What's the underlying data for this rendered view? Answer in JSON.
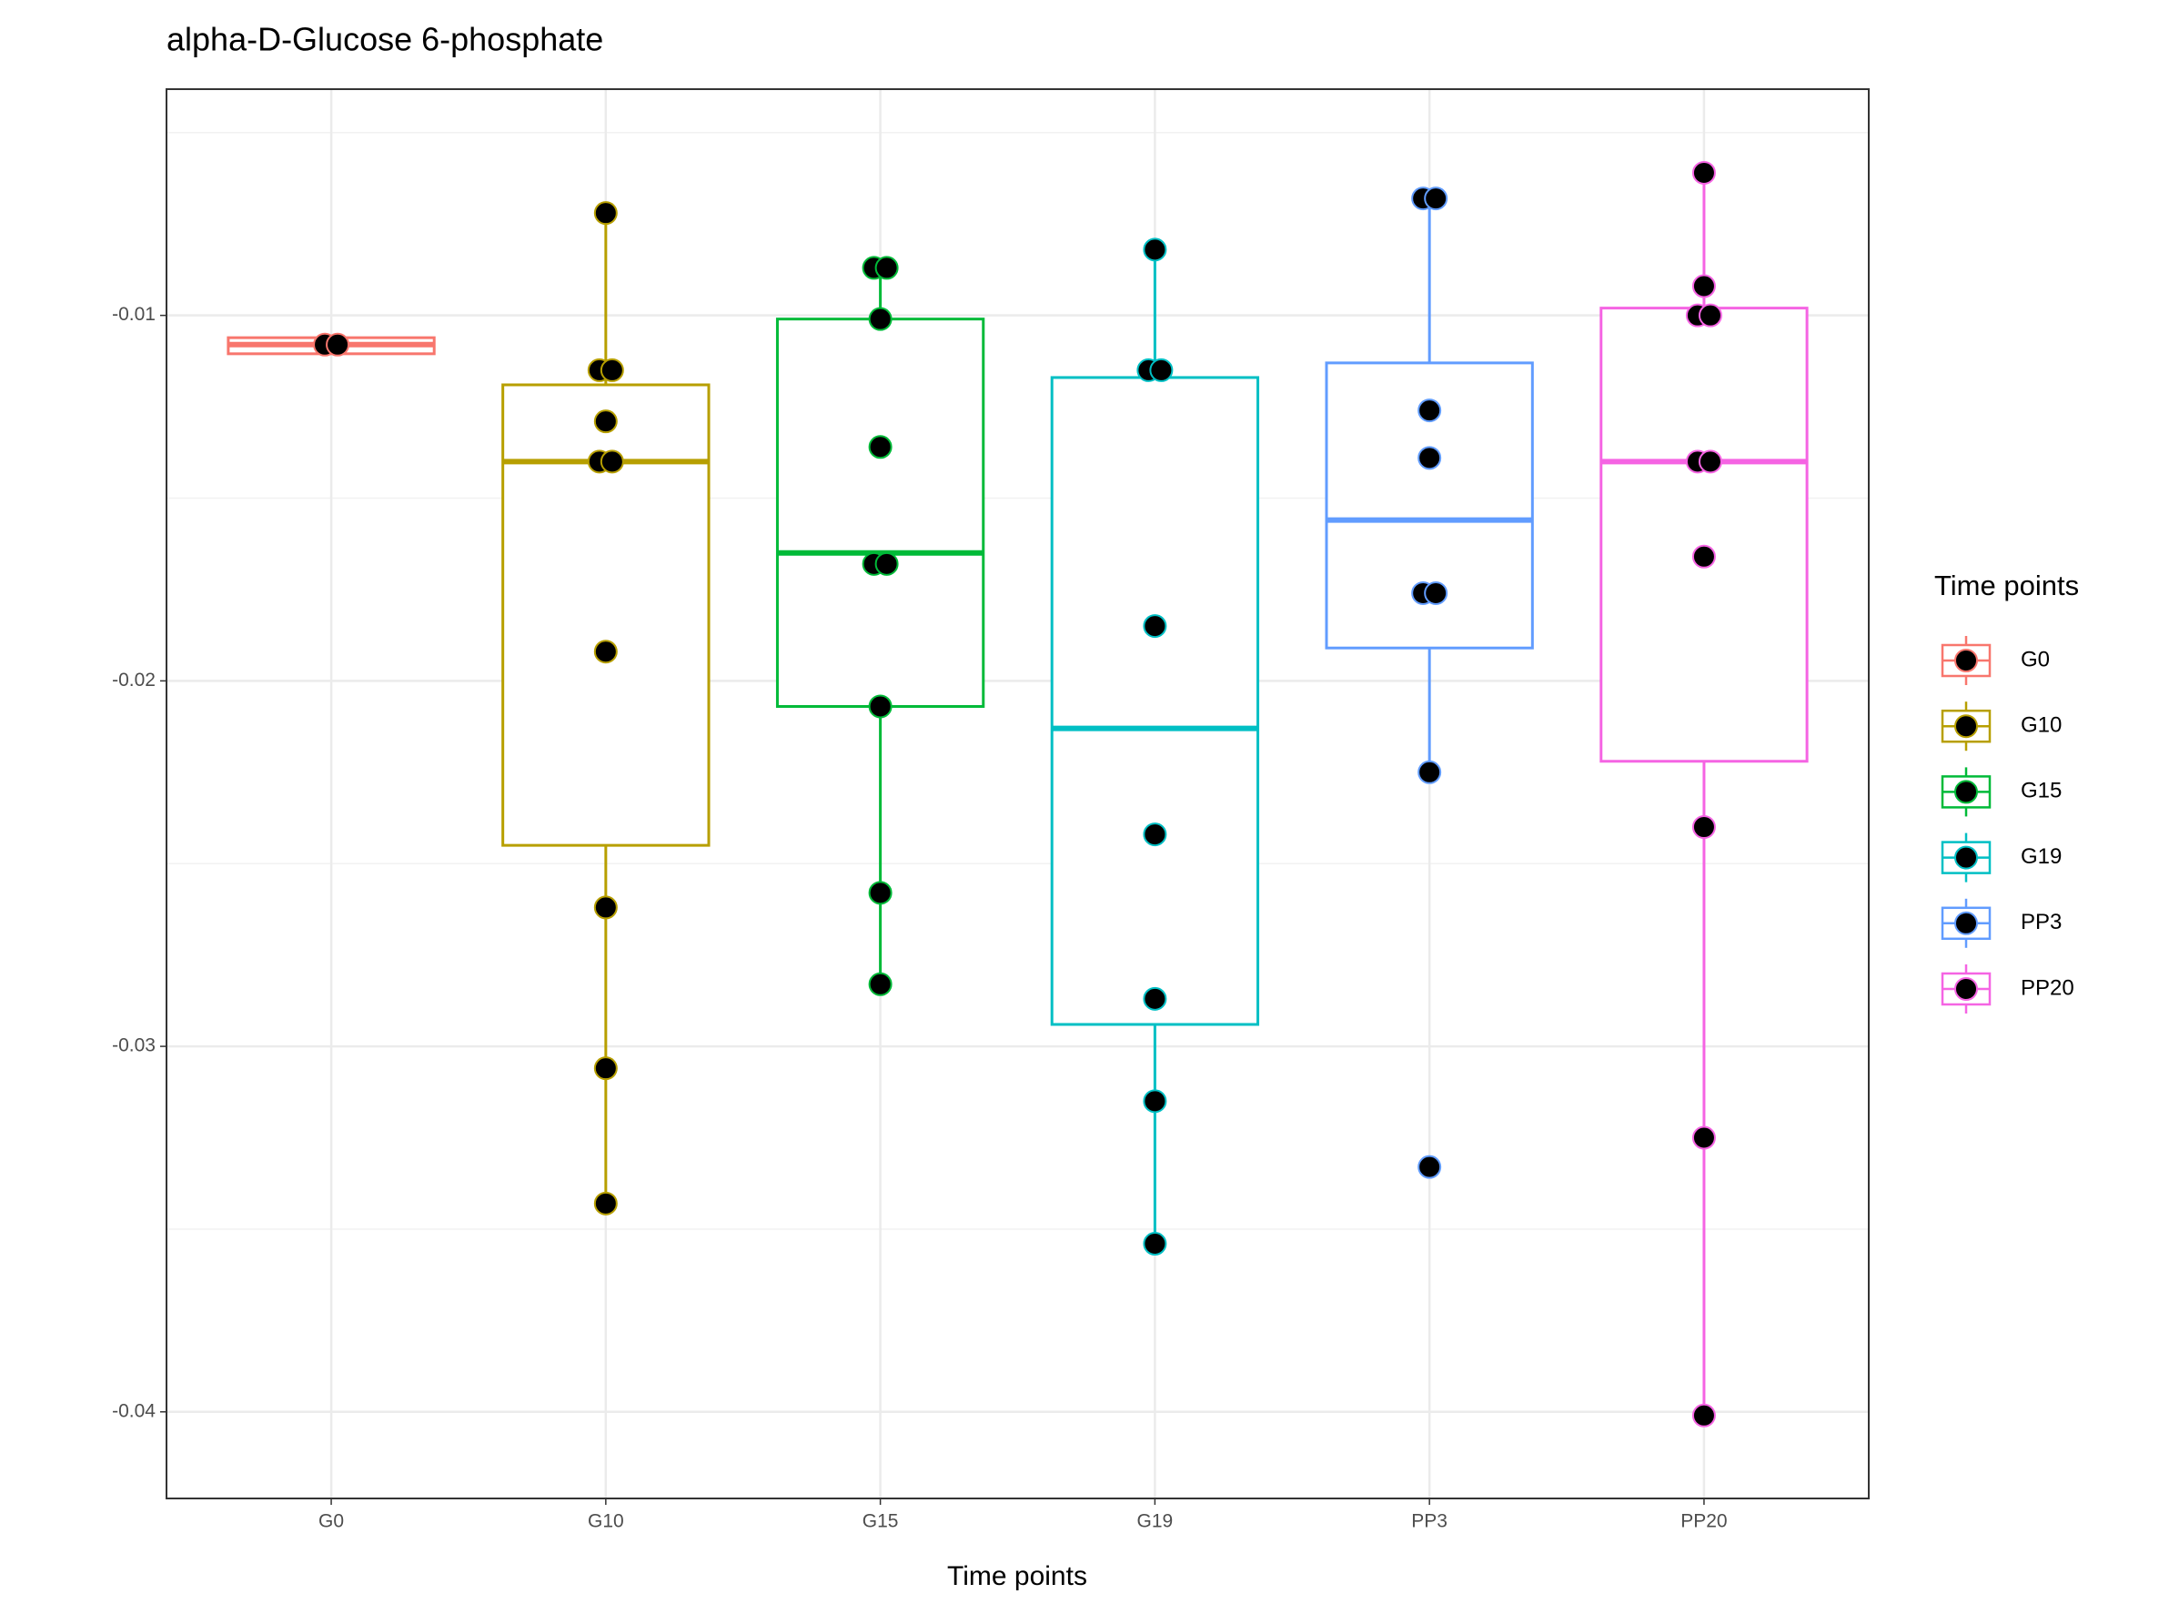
{
  "chart_data": {
    "type": "boxplot",
    "title": "alpha-D-Glucose 6-phosphate",
    "x_label": "Time points",
    "legend_title": "Time points",
    "categories": [
      "G0",
      "G10",
      "G15",
      "G19",
      "PP3",
      "PP20"
    ],
    "boxes": [
      {
        "color": "#F8766D",
        "whisker_low": -0.01105,
        "q1": -0.01105,
        "median": -0.0108,
        "q3": -0.01061,
        "whisker_high": -0.01061,
        "points": [
          -0.0108,
          -0.0108
        ]
      },
      {
        "color": "#B79F00",
        "whisker_low": -0.0343,
        "q1": -0.0245,
        "median": -0.014,
        "q3": -0.0119,
        "whisker_high": -0.0072,
        "points": [
          -0.0072,
          -0.0115,
          -0.0115,
          -0.0129,
          -0.014,
          -0.014,
          -0.0192,
          -0.0262,
          -0.0306,
          -0.0343
        ]
      },
      {
        "color": "#00BA38",
        "whisker_low": -0.0283,
        "q1": -0.0207,
        "median": -0.0165,
        "q3": -0.0101,
        "whisker_high": -0.0087,
        "points": [
          -0.0087,
          -0.0087,
          -0.0101,
          -0.0136,
          -0.0168,
          -0.0168,
          -0.0207,
          -0.0258,
          -0.0283
        ]
      },
      {
        "color": "#00BFC4",
        "whisker_low": -0.0354,
        "q1": -0.0294,
        "median": -0.0213,
        "q3": -0.0117,
        "whisker_high": -0.0082,
        "points": [
          -0.0082,
          -0.0115,
          -0.0115,
          -0.0185,
          -0.0242,
          -0.0287,
          -0.0315,
          -0.0354
        ]
      },
      {
        "color": "#619CFF",
        "whisker_low": -0.0225,
        "q1": -0.0191,
        "median": -0.0156,
        "q3": -0.0113,
        "whisker_high": -0.0068,
        "points": [
          -0.0068,
          -0.0068,
          -0.0126,
          -0.0139,
          -0.0176,
          -0.0176,
          -0.0225,
          -0.0333
        ]
      },
      {
        "color": "#F564E3",
        "whisker_low": -0.0401,
        "q1": -0.0222,
        "median": -0.014,
        "q3": -0.0098,
        "whisker_high": -0.0061,
        "points": [
          -0.0061,
          -0.0092,
          -0.01,
          -0.01,
          -0.014,
          -0.014,
          -0.0166,
          -0.024,
          -0.0325,
          -0.0401
        ]
      }
    ],
    "ylim": [
      -0.04237,
      -0.00381
    ],
    "yticks": [
      -0.01,
      -0.02,
      -0.03,
      -0.04
    ],
    "minor_yticks": [
      -0.005,
      -0.015,
      -0.025,
      -0.035
    ],
    "grid": true,
    "legend_position": "right"
  }
}
